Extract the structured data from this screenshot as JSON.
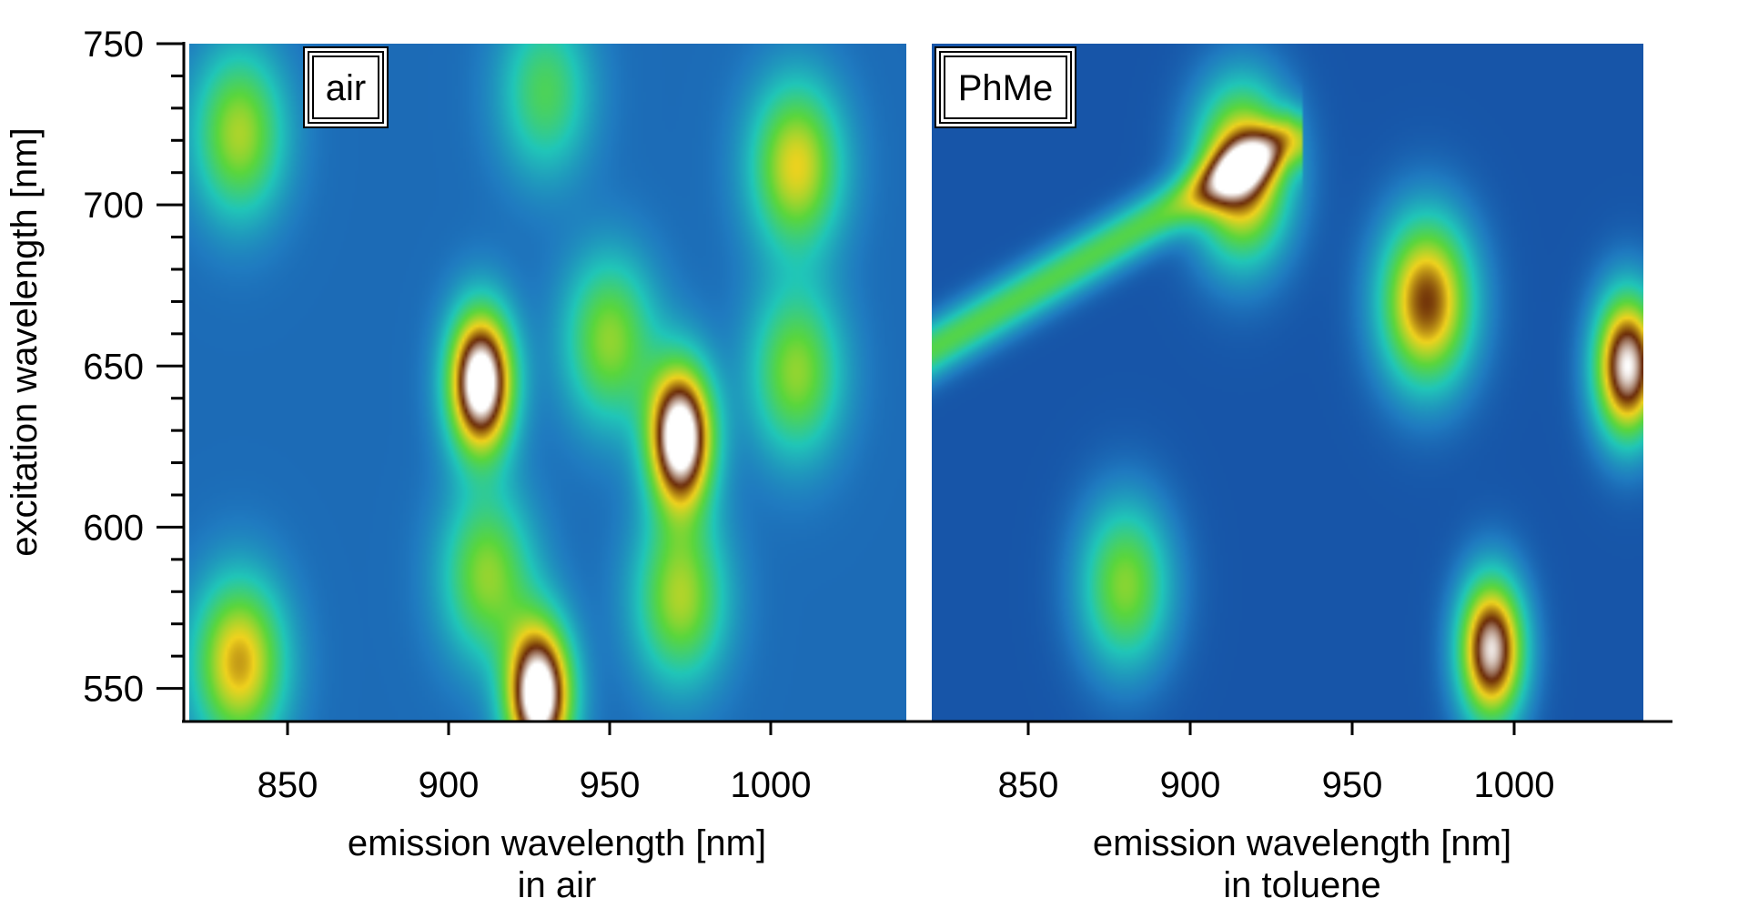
{
  "chart_data": [
    {
      "type": "heatmap",
      "panel_label": "air",
      "xlabel": "emission wavelength [nm]",
      "xlabel_sub": "in air",
      "ylabel": "excitation wavelength [nm]",
      "xlim": [
        820,
        1040
      ],
      "ylim": [
        540,
        750
      ],
      "xticks": [
        850,
        900,
        950,
        1000
      ],
      "yticks": [
        550,
        600,
        650,
        700,
        750
      ],
      "colormap": [
        "#0a1e84",
        "#1f7ac0",
        "#20c6b8",
        "#5ad63c",
        "#f0d21e",
        "#6a2a08",
        "#ffffff"
      ],
      "background_intensity": 0.14,
      "peaks": [
        {
          "x": 910,
          "y": 645,
          "intensity": 1.0
        },
        {
          "x": 972,
          "y": 628,
          "intensity": 1.0
        },
        {
          "x": 928,
          "y": 548,
          "intensity": 1.0
        },
        {
          "x": 835,
          "y": 558,
          "intensity": 0.58
        },
        {
          "x": 835,
          "y": 722,
          "intensity": 0.45
        },
        {
          "x": 1008,
          "y": 712,
          "intensity": 0.52
        },
        {
          "x": 1008,
          "y": 648,
          "intensity": 0.42
        },
        {
          "x": 950,
          "y": 658,
          "intensity": 0.42
        },
        {
          "x": 972,
          "y": 578,
          "intensity": 0.45
        },
        {
          "x": 912,
          "y": 585,
          "intensity": 0.42
        },
        {
          "x": 930,
          "y": 735,
          "intensity": 0.32
        }
      ]
    },
    {
      "type": "heatmap",
      "panel_label": "PhMe",
      "xlabel": "emission wavelength [nm]",
      "xlabel_sub": "in toluene",
      "ylabel": "",
      "xlim": [
        820,
        1040
      ],
      "ylim": [
        540,
        750
      ],
      "xticks": [
        850,
        900,
        950,
        1000
      ],
      "yticks": [],
      "colormap": [
        "#0a1e84",
        "#1f7ac0",
        "#20c6b8",
        "#5ad63c",
        "#f0d21e",
        "#6a2a08",
        "#ffffff"
      ],
      "background_intensity": 0.1,
      "peaks": [
        {
          "x": 973,
          "y": 670,
          "intensity": 0.72
        },
        {
          "x": 1035,
          "y": 650,
          "intensity": 0.9
        },
        {
          "x": 993,
          "y": 562,
          "intensity": 0.88
        },
        {
          "x": 880,
          "y": 582,
          "intensity": 0.45
        },
        {
          "x": 916,
          "y": 710,
          "intensity": 0.75
        }
      ],
      "diagonal_band": {
        "x_start": 820,
        "y_start": 655,
        "x_end": 930,
        "y_end": 720,
        "intensity": 0.38
      }
    }
  ]
}
